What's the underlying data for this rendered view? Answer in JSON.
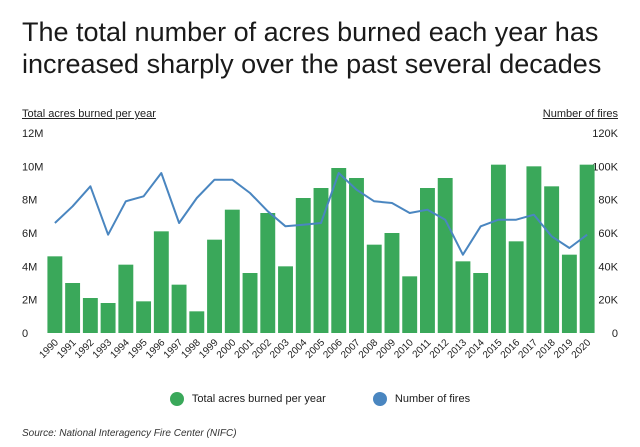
{
  "title": "The total number of acres burned each year has increased sharply over the past several decades",
  "source": "Source:  National Interagency Fire Center (NIFC)",
  "colors": {
    "bars": "#3aa85a",
    "line": "#4a86c0"
  },
  "chart_data": {
    "type": "bar+line",
    "categories": [
      "1990",
      "1991",
      "1992",
      "1993",
      "1994",
      "1995",
      "1996",
      "1997",
      "1998",
      "1999",
      "2000",
      "2001",
      "2002",
      "2003",
      "2004",
      "2005",
      "2006",
      "2007",
      "2008",
      "2009",
      "2010",
      "2011",
      "2012",
      "2013",
      "2014",
      "2015",
      "2016",
      "2017",
      "2018",
      "2019",
      "2020"
    ],
    "series": [
      {
        "name": "Total acres burned per year",
        "type": "bar",
        "axis": "left",
        "values": [
          4.6,
          3.0,
          2.1,
          1.8,
          4.1,
          1.9,
          6.1,
          2.9,
          1.3,
          5.6,
          7.4,
          3.6,
          7.2,
          4.0,
          8.1,
          8.7,
          9.9,
          9.3,
          5.3,
          6.0,
          3.4,
          8.7,
          9.3,
          4.3,
          3.6,
          10.1,
          5.5,
          10.0,
          8.8,
          4.7,
          10.1
        ]
      },
      {
        "name": "Number of fires",
        "type": "line",
        "axis": "right",
        "values": [
          66,
          76,
          88,
          59,
          79,
          82,
          96,
          66,
          81,
          92,
          92,
          84,
          73,
          64,
          65,
          66,
          96,
          86,
          79,
          78,
          72,
          74,
          68,
          47,
          64,
          68,
          68,
          71,
          58,
          51,
          59
        ]
      }
    ],
    "left_axis": {
      "label": "Total acres burned per year",
      "ticks": [
        "0",
        "2M",
        "4M",
        "6M",
        "8M",
        "10M",
        "12M"
      ],
      "range": [
        0,
        12
      ]
    },
    "right_axis": {
      "label": "Number of fires",
      "ticks": [
        "0",
        "20K",
        "40K",
        "60K",
        "80K",
        "100K",
        "120K"
      ],
      "range": [
        0,
        120
      ]
    },
    "legend_position": "bottom"
  }
}
